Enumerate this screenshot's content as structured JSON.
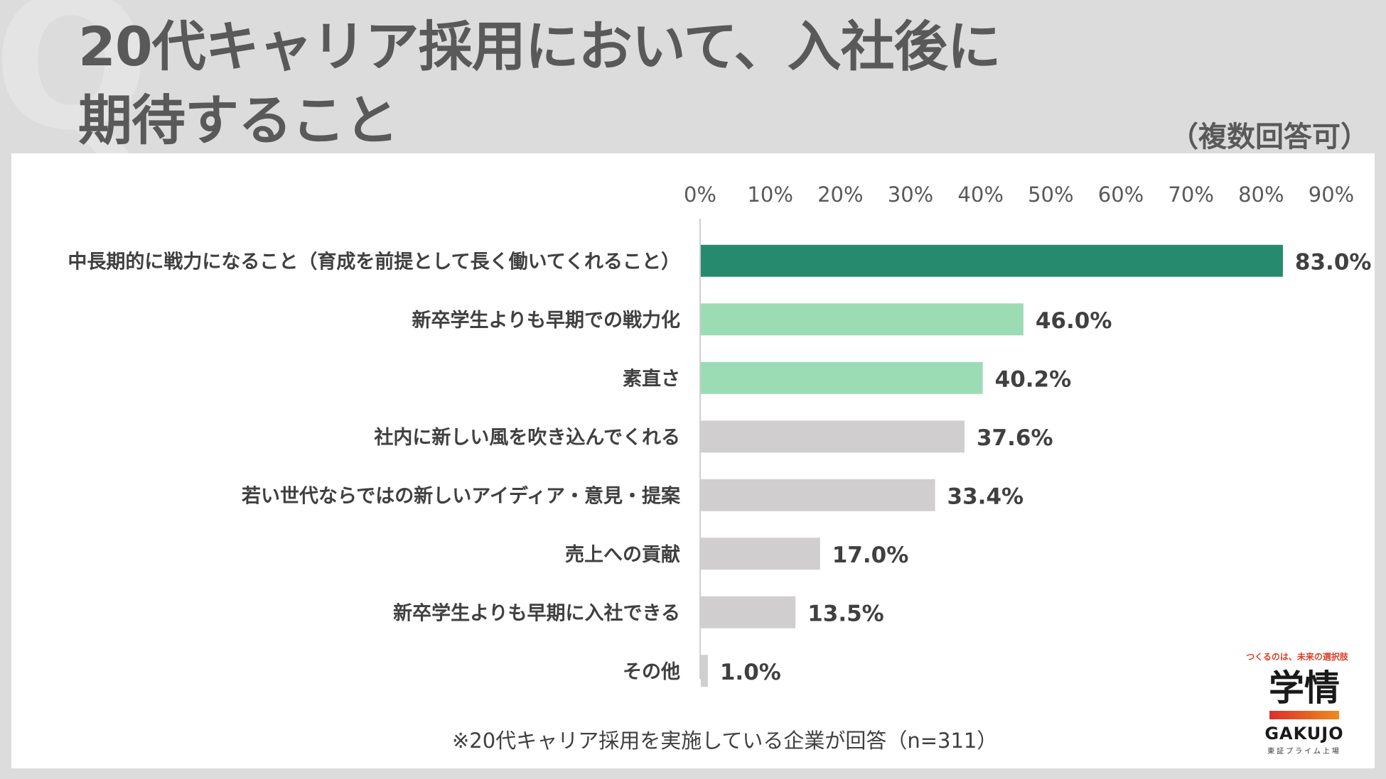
{
  "header": {
    "deco_letter": "Q",
    "title_line1": "20代キャリア採用において、入社後に",
    "title_line2": "期待すること",
    "note": "（複数回答可）"
  },
  "chart_data": {
    "type": "bar",
    "orientation": "horizontal",
    "categories": [
      "中長期的に戦力になること（育成を前提として長く働いてくれること）",
      "新卒学生よりも早期での戦力化",
      "素直さ",
      "社内に新しい風を吹き込んでくれる",
      "若い世代ならではの新しいアイディア・意見・提案",
      "売上への貢献",
      "新卒学生よりも早期に入社できる",
      "その他"
    ],
    "values": [
      83.0,
      46.0,
      40.2,
      37.6,
      33.4,
      17.0,
      13.5,
      1.0
    ],
    "value_labels": [
      "83.0%",
      "46.0%",
      "40.2%",
      "37.6%",
      "33.4%",
      "17.0%",
      "13.5%",
      "1.0%"
    ],
    "bar_colors": [
      "#268b6e",
      "#9bdcb5",
      "#9bdcb5",
      "#d0cece",
      "#d0cece",
      "#d0cece",
      "#d0cece",
      "#d0cece"
    ],
    "xlim": [
      0,
      90
    ],
    "ticks": [
      0,
      10,
      20,
      30,
      40,
      50,
      60,
      70,
      80,
      90
    ],
    "tick_labels": [
      "0%",
      "10%",
      "20%",
      "30%",
      "40%",
      "50%",
      "60%",
      "70%",
      "80%",
      "90%"
    ],
    "axis_position": "top",
    "grid": false,
    "title": "20代キャリア採用において、入社後に期待すること"
  },
  "footnote": "※20代キャリア採用を実施している企業が回答（n=311）",
  "logo": {
    "tagline": "つくるのは、未来の選択肢",
    "name_ja": "学情",
    "name_en": "GAKUJO",
    "sub": "東証プライム上場"
  }
}
